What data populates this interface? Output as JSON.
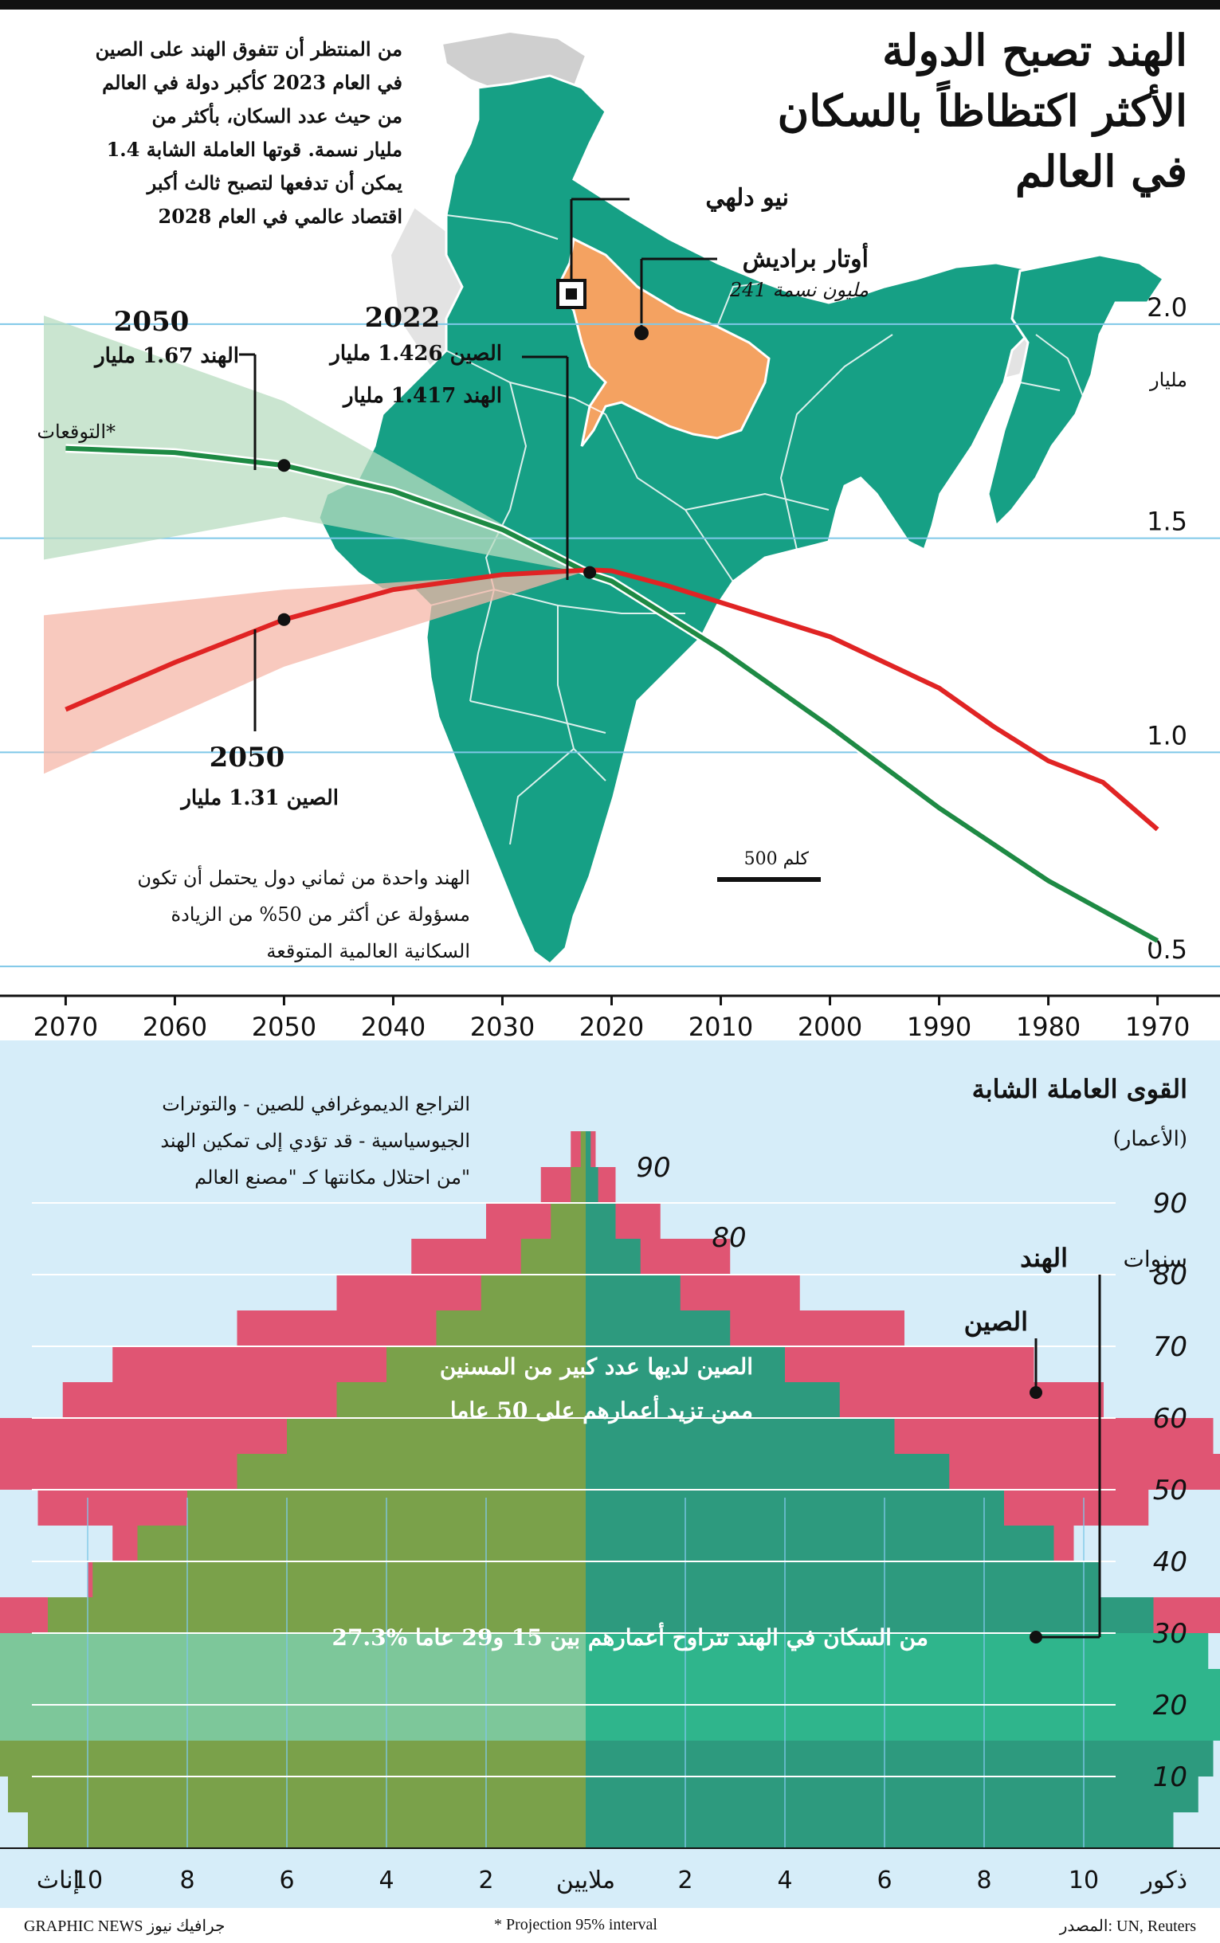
{
  "title": [
    "الهند تصبح الدولة",
    "الأكثر اكتظاظاً بالسكان",
    "في العالم"
  ],
  "intro": [
    "من المنتظر أن تتفوق الهند على الصين",
    "في العام 2023 كأكبر دولة في العالم",
    "من حيث عدد السكان، بأكثر من",
    "1.4 مليار نسمة. قوتها العاملة الشابة",
    "يمكن أن تدفعها لتصبح ثالث أكبر",
    "اقتصاد عالمي في العام 2028"
  ],
  "map": {
    "new_delhi": "نيو دلهي",
    "uttar_pradesh": "أوتار براديش",
    "uttar_pradesh_pop": "241 مليون نسمة",
    "scale_label": "500 كلم",
    "colors": {
      "land": "#16a085",
      "state": "#f4a261",
      "neighbors": "#cfcfcf",
      "borders": "#ffffff"
    }
  },
  "annotations": {
    "y2050_india_year": "2050",
    "y2050_india_value": "الهند 1.67 مليار",
    "y2022_year": "2022",
    "y2022_china": "الصين 1.426 مليار",
    "y2022_india": "الهند 1.417 مليار",
    "projection_label": "التوقعات*",
    "y2050_china_year": "2050",
    "y2050_china_value": "الصين 1.31 مليار",
    "unit": "مليار",
    "note": [
      "الهند واحدة من ثماني دول يحتمل أن تكون",
      "مسؤولة عن أكثر من 50% من الزيادة",
      "السكانية العالمية المتوقعة"
    ]
  },
  "chart_data": [
    {
      "type": "line",
      "title": "",
      "xlabel": "",
      "ylabel": "مليار",
      "xlim": [
        2072,
        1968
      ],
      "ylim": [
        0.45,
        2.05
      ],
      "yticks": [
        0.5,
        1.0,
        1.5,
        2.0
      ],
      "ytick_labels": [
        "0.5",
        "1.0",
        "1.5",
        "2.0"
      ],
      "xticks": [
        2070,
        2060,
        2050,
        2040,
        2030,
        2020,
        2010,
        2000,
        1990,
        1980,
        1970
      ],
      "grid": true,
      "series": [
        {
          "name": "الهند",
          "color": "#1e8a44",
          "x": [
            1970,
            1980,
            1990,
            2000,
            2010,
            2020,
            2022,
            2030,
            2040,
            2050,
            2060,
            2070
          ],
          "y": [
            0.56,
            0.7,
            0.87,
            1.06,
            1.24,
            1.4,
            1.417,
            1.52,
            1.61,
            1.67,
            1.7,
            1.71
          ]
        },
        {
          "name": "الصين",
          "color": "#e02424",
          "x": [
            1970,
            1975,
            1980,
            1985,
            1990,
            1995,
            2000,
            2005,
            2010,
            2015,
            2020,
            2022,
            2030,
            2040,
            2050,
            2060,
            2070
          ],
          "y": [
            0.82,
            0.93,
            0.98,
            1.06,
            1.15,
            1.21,
            1.27,
            1.31,
            1.35,
            1.39,
            1.424,
            1.426,
            1.415,
            1.38,
            1.31,
            1.21,
            1.1
          ]
        }
      ],
      "intervals": [
        {
          "name": "الهند",
          "color": "#b8dcc0",
          "x": [
            2022,
            2050,
            2072
          ],
          "low": [
            1.417,
            1.55,
            1.45
          ],
          "high": [
            1.417,
            1.82,
            2.02
          ]
        },
        {
          "name": "الصين",
          "color": "#f5b7a8",
          "x": [
            2022,
            2050,
            2072
          ],
          "low": [
            1.426,
            1.2,
            0.95
          ],
          "high": [
            1.426,
            1.38,
            1.32
          ]
        }
      ]
    },
    {
      "type": "bar",
      "title": "القوى العاملة الشابة",
      "subtitle": "(الأعمار)",
      "ylabel": "سنوات",
      "xlabel": "ملايين",
      "left_label": "إناث",
      "right_label": "ذكور",
      "legend": [
        "الهند",
        "الصين"
      ],
      "xlim": [
        -12,
        12
      ],
      "xtick_labels": [
        "10",
        "8",
        "6",
        "4",
        "2",
        "ملايين",
        "2",
        "4",
        "6",
        "8",
        "10"
      ],
      "ytick_labels": [
        "10",
        "20",
        "30",
        "40",
        "50",
        "60",
        "70",
        "80",
        "90"
      ],
      "annotations": [
        "الصين لديها عدد كبير من المسنين",
        "ممن تزيد أعمارهم على 50 عاما",
        "27.3% من السكان في الهند تتراوح أعمارهم بين 15 و29 عاما"
      ],
      "note": [
        "التراجع الديموغرافي للصين - والتوترات",
        "الجيوسياسية - قد تؤدي إلى تمكين الهند",
        "من احتلال مكانتها كـ \"مصنع العالم\""
      ],
      "colors": {
        "india_female": "#7aa14a",
        "india_male": "#2d9a7e",
        "china": "#e05573",
        "youth_female": "#7dc79a",
        "youth_male": "#2fb58c"
      },
      "ages": [
        0,
        5,
        10,
        15,
        20,
        25,
        30,
        35,
        40,
        45,
        50,
        55,
        60,
        65,
        70,
        75,
        80,
        85,
        90,
        95
      ],
      "india_female": [
        11.2,
        11.6,
        11.9,
        12.0,
        12.2,
        11.8,
        10.8,
        9.9,
        9.0,
        8.0,
        7.0,
        6.0,
        5.0,
        4.0,
        3.0,
        2.1,
        1.3,
        0.7,
        0.3,
        0.1
      ],
      "india_male": [
        11.8,
        12.3,
        12.6,
        12.8,
        13.0,
        12.5,
        11.4,
        10.3,
        9.4,
        8.4,
        7.3,
        6.2,
        5.1,
        4.0,
        2.9,
        1.9,
        1.1,
        0.6,
        0.25,
        0.1
      ],
      "china_female": [
        7.0,
        8.0,
        8.5,
        8.0,
        8.3,
        10.0,
        12.3,
        10.0,
        9.5,
        11.0,
        12.8,
        12.5,
        10.5,
        9.5,
        7.0,
        5.0,
        3.5,
        2.0,
        0.9,
        0.3
      ],
      "china_male": [
        7.8,
        8.8,
        9.4,
        8.9,
        9.0,
        10.6,
        12.8,
        10.3,
        9.8,
        11.3,
        13.0,
        12.6,
        10.4,
        9.0,
        6.4,
        4.3,
        2.9,
        1.5,
        0.6,
        0.2
      ]
    }
  ],
  "footer": {
    "source": "المصدر: UN, Reuters",
    "projection": "* Projection 95% interval",
    "credit": "GRAPHIC NEWS جرافيك نيوز"
  }
}
